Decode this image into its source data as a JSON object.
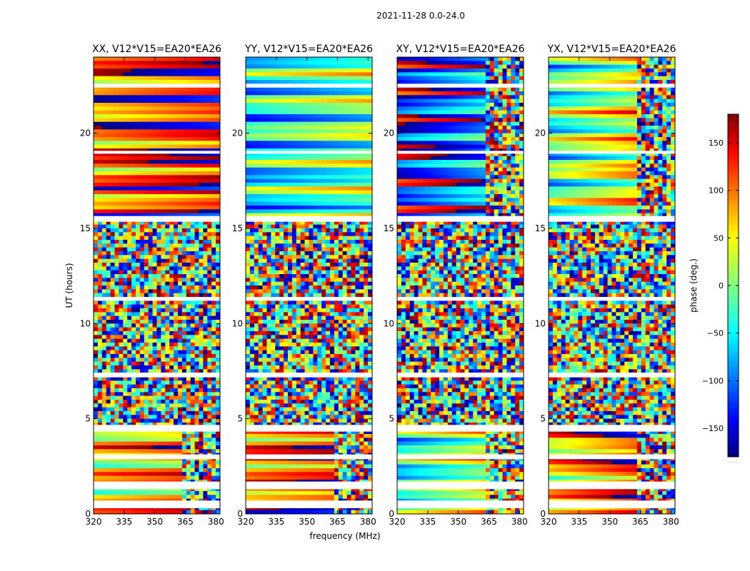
{
  "figure_title": "2021-11-28 0.0-24.0",
  "chart_data": {
    "type": "heatmap",
    "suptitle": "2021-11-28 0.0-24.0",
    "xlabel": "frequency (MHz)",
    "ylabel": "UT (hours)",
    "xlim": [
      320,
      382
    ],
    "ylim": [
      0,
      24
    ],
    "xticks": [
      320,
      335,
      350,
      365,
      380
    ],
    "yticks": [
      0,
      5,
      10,
      15,
      20
    ],
    "colorbar": {
      "label": "phase (deg.)",
      "range": [
        -180,
        180
      ],
      "ticks": [
        150,
        100,
        50,
        0,
        -50,
        -100,
        -150
      ],
      "tick_labels": [
        "150",
        "100",
        "50",
        "0",
        "−50",
        "−100",
        "−150"
      ],
      "colormap": "jet",
      "stops": [
        "#00007f",
        "#0000ff",
        "#00ffff",
        "#7fff7f",
        "#ffff00",
        "#ff0000",
        "#7f0000"
      ],
      "bottom_mark": "....."
    },
    "panels": [
      {
        "title": "XX, V12*V15=EA20*EA26",
        "regimes": [
          {
            "from_ut": 0,
            "to_ut": 4.6,
            "pattern": "smooth bands, orange/yellow with blue layers"
          },
          {
            "from_ut": 4.6,
            "to_ut": 15.4,
            "pattern": "noise"
          },
          {
            "from_ut": 15.4,
            "to_ut": 24,
            "pattern": "smooth horizontal bands, red/blue alternating"
          }
        ]
      },
      {
        "title": "YY, V12*V15=EA20*EA26",
        "regimes": [
          {
            "from_ut": 0,
            "to_ut": 4.6,
            "pattern": "smooth bands, red/orange with blue layers"
          },
          {
            "from_ut": 4.6,
            "to_ut": 15.4,
            "pattern": "noise"
          },
          {
            "from_ut": 15.4,
            "to_ut": 24,
            "pattern": "smooth bands, cyan/blue with red"
          }
        ]
      },
      {
        "title": "XY, V12*V15=EA20*EA26",
        "regimes": [
          {
            "from_ut": 0,
            "to_ut": 4.6,
            "pattern": "green/yellow patches with blue, noisy right"
          },
          {
            "from_ut": 4.6,
            "to_ut": 15.4,
            "pattern": "noise"
          },
          {
            "from_ut": 15.4,
            "to_ut": 24,
            "pattern": "blue dominant bands, noisy at high frequency"
          }
        ]
      },
      {
        "title": "YX, V12*V15=EA20*EA26",
        "regimes": [
          {
            "from_ut": 0,
            "to_ut": 4.6,
            "pattern": "red/orange with green patches, noisy right"
          },
          {
            "from_ut": 4.6,
            "to_ut": 15.4,
            "pattern": "noise"
          },
          {
            "from_ut": 15.4,
            "to_ut": 24,
            "pattern": "green/yellow bands with red, noisy at high frequency"
          }
        ]
      }
    ]
  }
}
